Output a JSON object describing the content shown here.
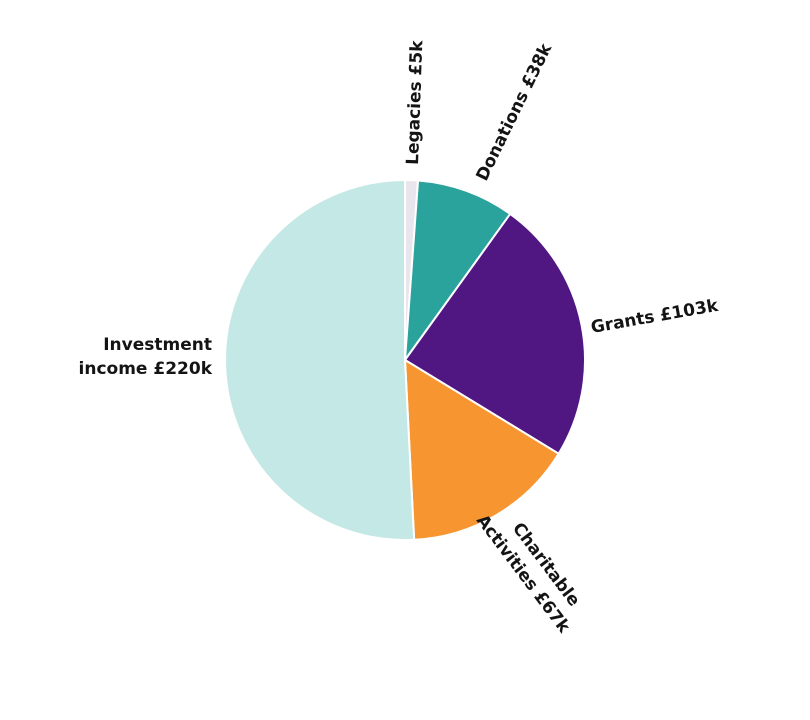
{
  "chart_data": {
    "type": "pie",
    "title": "",
    "slices": [
      {
        "label": "Legacies £5k",
        "label_lines": [
          "Legacies £5k"
        ],
        "value": 5,
        "color": "#e8e6ec"
      },
      {
        "label": "Donations £38k",
        "label_lines": [
          "Donations £38k"
        ],
        "value": 38,
        "color": "#2ba39d"
      },
      {
        "label": "Grants £103k",
        "label_lines": [
          "Grants £103k"
        ],
        "value": 103,
        "color": "#501682"
      },
      {
        "label": "Charitable Activities £67k",
        "label_lines": [
          "Charitable",
          "Activities £67k"
        ],
        "value": 67,
        "color": "#f79531"
      },
      {
        "label": "Investment income £220k",
        "label_lines": [
          "Investment",
          "income £220k"
        ],
        "value": 220,
        "color": "#c3e8e6"
      }
    ],
    "start_angle_deg": 0,
    "direction": "clockwise",
    "legend": "none",
    "slice_border_color": "#ffffff"
  }
}
